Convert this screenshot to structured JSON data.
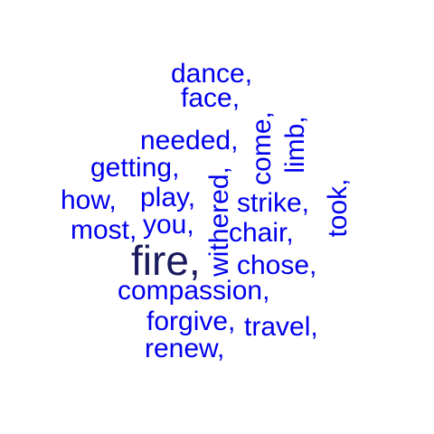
{
  "words": {
    "dance": "dance,",
    "face": "face,",
    "needed": "needed,",
    "getting": "getting,",
    "how": "how,",
    "play": "play,",
    "most": "most,",
    "you": "you,",
    "fire": "fire,",
    "compassion": "compassion,",
    "forgive": "forgive,",
    "renew": "renew,",
    "travel": "travel,",
    "chose": "chose,",
    "chair": "chair,",
    "strike": "strike,",
    "withered": "withered,",
    "come": "come,",
    "limb": "limb,",
    "took": "took,"
  },
  "colors": {
    "primary": "#0000ee",
    "emphasis": "#1a1a5e",
    "background": "#ffffff"
  }
}
